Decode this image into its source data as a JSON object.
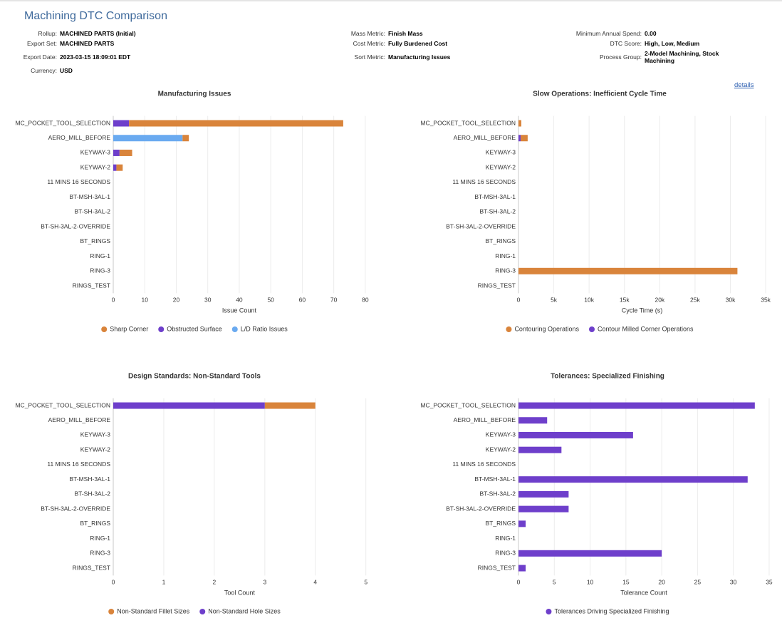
{
  "header": {
    "title": "Machining DTC Comparison",
    "columns": [
      [
        {
          "label": "Rollup:",
          "value": "MACHINED PARTS (Initial)"
        },
        {
          "label": "Export Set:",
          "value": "MACHINED PARTS"
        },
        {
          "label": "Export Date:",
          "value": "2023-03-15 18:09:01 EDT"
        },
        {
          "label": "Currency:",
          "value": "USD"
        }
      ],
      [
        {
          "label": "Mass Metric:",
          "value": "Finish Mass"
        },
        {
          "label": "Cost Metric:",
          "value": "Fully Burdened Cost"
        },
        {
          "label": "Sort Metric:",
          "value": "Manufacturing Issues"
        }
      ],
      [
        {
          "label": "Minimum Annual Spend:",
          "value": "0.00"
        },
        {
          "label": "DTC Score:",
          "value": "High, Low, Medium"
        },
        {
          "label": "Process Group:",
          "value": "2-Model Machining, Stock Machining"
        }
      ]
    ],
    "link": "details"
  },
  "chart_data": [
    {
      "type": "bar",
      "title": "Manufacturing Issues",
      "x_label": "Issue Count",
      "categories": [
        "MC_POCKET_TOOL_SELECTION",
        "AERO_MILL_BEFORE",
        "KEYWAY-3",
        "KEYWAY-2",
        "11 MINS 16 SECONDS",
        "BT-MSH-3AL-1",
        "BT-SH-3AL-2",
        "BT-SH-3AL-2-OVERRIDE",
        "BT_RINGS",
        "RING-1",
        "RING-3",
        "RINGS_TEST"
      ],
      "series": [
        {
          "name": "Sharp Corner",
          "color": "#d9843b",
          "values": [
            68,
            2,
            4,
            2,
            0,
            0,
            0,
            0,
            0,
            0,
            0,
            0
          ]
        },
        {
          "name": "Obstructed Surface",
          "color": "#6e3fcb",
          "values": [
            5,
            0,
            2,
            1,
            0,
            0,
            0,
            0,
            0,
            0,
            0,
            0
          ]
        },
        {
          "name": "L/D Ratio Issues",
          "color": "#6aaaf0",
          "values": [
            0,
            22,
            0,
            0,
            0,
            0,
            0,
            0,
            0,
            0,
            0,
            0
          ]
        }
      ],
      "xlim": [
        0,
        85
      ],
      "xticks": [
        0,
        10,
        20,
        30,
        40,
        50,
        60,
        70,
        80
      ],
      "grid": true
    },
    {
      "type": "bar",
      "title": "Slow Operations: Inefficient Cycle Time",
      "x_label": "Cycle Time (s)",
      "categories": [
        "MC_POCKET_TOOL_SELECTION",
        "AERO_MILL_BEFORE",
        "KEYWAY-3",
        "KEYWAY-2",
        "11 MINS 16 SECONDS",
        "BT-MSH-3AL-1",
        "BT-SH-3AL-2",
        "BT-SH-3AL-2-OVERRIDE",
        "BT_RINGS",
        "RING-1",
        "RING-3",
        "RINGS_TEST"
      ],
      "series": [
        {
          "name": "Contouring Operations",
          "color": "#d9843b",
          "values": [
            400,
            1000,
            0,
            0,
            0,
            0,
            0,
            0,
            0,
            0,
            31000,
            0
          ]
        },
        {
          "name": "Contour Milled Corner Operations",
          "color": "#6e3fcb",
          "values": [
            0,
            300,
            0,
            0,
            0,
            0,
            0,
            0,
            0,
            0,
            0,
            0
          ]
        }
      ],
      "xlim": [
        0,
        36000
      ],
      "xticks": [
        0,
        {
          "value": 5000,
          "label": "5k"
        },
        {
          "value": 10000,
          "label": "10k"
        },
        {
          "value": 15000,
          "label": "15k"
        },
        {
          "value": 20000,
          "label": "20k"
        },
        {
          "value": 25000,
          "label": "25k"
        },
        {
          "value": 30000,
          "label": "30k"
        },
        {
          "value": 35000,
          "label": "35k"
        }
      ],
      "grid": true
    },
    {
      "type": "bar",
      "title": "Design Standards: Non-Standard Tools",
      "x_label": "Tool Count",
      "categories": [
        "MC_POCKET_TOOL_SELECTION",
        "AERO_MILL_BEFORE",
        "KEYWAY-3",
        "KEYWAY-2",
        "11 MINS 16 SECONDS",
        "BT-MSH-3AL-1",
        "BT-SH-3AL-2",
        "BT-SH-3AL-2-OVERRIDE",
        "BT_RINGS",
        "RING-1",
        "RING-3",
        "RINGS_TEST"
      ],
      "series": [
        {
          "name": "Non-Standard Fillet Sizes",
          "color": "#d9843b",
          "values": [
            1,
            0,
            0,
            0,
            0,
            0,
            0,
            0,
            0,
            0,
            0,
            0
          ]
        },
        {
          "name": "Non-Standard Hole Sizes",
          "color": "#6e3fcb",
          "values": [
            3,
            0,
            0,
            0,
            0,
            0,
            0,
            0,
            0,
            0,
            0,
            0
          ]
        }
      ],
      "xlim": [
        0,
        5.3
      ],
      "xticks": [
        0,
        1,
        2,
        3,
        4,
        5
      ],
      "grid": true
    },
    {
      "type": "bar",
      "title": "Tolerances: Specialized Finishing",
      "x_label": "Tolerance Count",
      "categories": [
        "MC_POCKET_TOOL_SELECTION",
        "AERO_MILL_BEFORE",
        "KEYWAY-3",
        "KEYWAY-2",
        "11 MINS 16 SECONDS",
        "BT-MSH-3AL-1",
        "BT-SH-3AL-2",
        "BT-SH-3AL-2-OVERRIDE",
        "BT_RINGS",
        "RING-1",
        "RING-3",
        "RINGS_TEST"
      ],
      "series": [
        {
          "name": "Tolerances Driving Specialized Finishing",
          "color": "#6e3fcb",
          "values": [
            33,
            4,
            16,
            6,
            0,
            32,
            7,
            7,
            1,
            0,
            20,
            1
          ]
        }
      ],
      "xlim": [
        0,
        36
      ],
      "xticks": [
        0,
        5,
        10,
        15,
        20,
        25,
        30,
        35
      ],
      "grid": true
    }
  ]
}
